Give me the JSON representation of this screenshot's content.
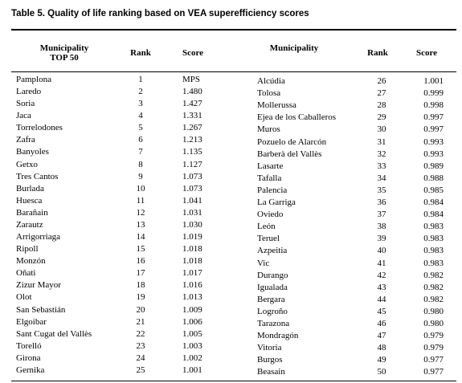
{
  "title": "Table 5. Quality of life ranking based on VEA superefficiency scores",
  "left": {
    "headers": [
      [
        "Municipality",
        "TOP 50"
      ],
      [
        "Rank"
      ],
      [
        "Score"
      ]
    ],
    "rows": [
      [
        "Pamplona",
        1,
        "MPS"
      ],
      [
        "Laredo",
        2,
        "1.480"
      ],
      [
        "Soria",
        3,
        "1.427"
      ],
      [
        "Jaca",
        4,
        "1.331"
      ],
      [
        "Torrelodones",
        5,
        "1.267"
      ],
      [
        "Zafra",
        6,
        "1.213"
      ],
      [
        "Banyoles",
        7,
        "1.135"
      ],
      [
        "Getxo",
        8,
        "1.127"
      ],
      [
        "Tres Cantos",
        9,
        "1.073"
      ],
      [
        "Burlada",
        10,
        "1.073"
      ],
      [
        "Huesca",
        11,
        "1.041"
      ],
      [
        "Barañain",
        12,
        "1.031"
      ],
      [
        "Zarautz",
        13,
        "1.030"
      ],
      [
        "Arrigorriaga",
        14,
        "1.019"
      ],
      [
        "Ripoll",
        15,
        "1.018"
      ],
      [
        "Monzón",
        16,
        "1.018"
      ],
      [
        "Oñati",
        17,
        "1.017"
      ],
      [
        "Zizur Mayor",
        18,
        "1.016"
      ],
      [
        "Olot",
        19,
        "1.013"
      ],
      [
        "San Sebastián",
        20,
        "1.009"
      ],
      [
        "Elgoibar",
        21,
        "1.006"
      ],
      [
        "Sant Cugat del Vallès",
        22,
        "1.005"
      ],
      [
        "Torelló",
        23,
        "1.003"
      ],
      [
        "Girona",
        24,
        "1.002"
      ],
      [
        "Gernika",
        25,
        "1.001"
      ]
    ]
  },
  "right": {
    "headers": [
      [
        "Municipality"
      ],
      [
        "Rank"
      ],
      [
        "Score"
      ]
    ],
    "rows": [
      [
        "Alcúdia",
        26,
        "1.001"
      ],
      [
        "Tolosa",
        27,
        "0.999"
      ],
      [
        "Mollerussa",
        28,
        "0.998"
      ],
      [
        "Ejea de los Caballeros",
        29,
        "0.997"
      ],
      [
        "Muros",
        30,
        "0.997"
      ],
      [
        "Pozuelo de Alarcón",
        31,
        "0.993"
      ],
      [
        "Barberà del Vallès",
        32,
        "0.993"
      ],
      [
        "Lasarte",
        33,
        "0.989"
      ],
      [
        "Tafalla",
        34,
        "0.988"
      ],
      [
        "Palencia",
        35,
        "0.985"
      ],
      [
        "La Garriga",
        36,
        "0.984"
      ],
      [
        "Oviedo",
        37,
        "0.984"
      ],
      [
        "León",
        38,
        "0.983"
      ],
      [
        "Teruel",
        39,
        "0.983"
      ],
      [
        "Azpeitia",
        40,
        "0.983"
      ],
      [
        "Vic",
        41,
        "0.983"
      ],
      [
        "Durango",
        42,
        "0.982"
      ],
      [
        "Igualada",
        43,
        "0.982"
      ],
      [
        "Bergara",
        44,
        "0.982"
      ],
      [
        "Logroño",
        45,
        "0.980"
      ],
      [
        "Tarazona",
        46,
        "0.980"
      ],
      [
        "Mondragón",
        47,
        "0.979"
      ],
      [
        "Vitoria",
        48,
        "0.979"
      ],
      [
        "Burgos",
        49,
        "0.977"
      ],
      [
        "Beasain",
        50,
        "0.977"
      ]
    ]
  }
}
